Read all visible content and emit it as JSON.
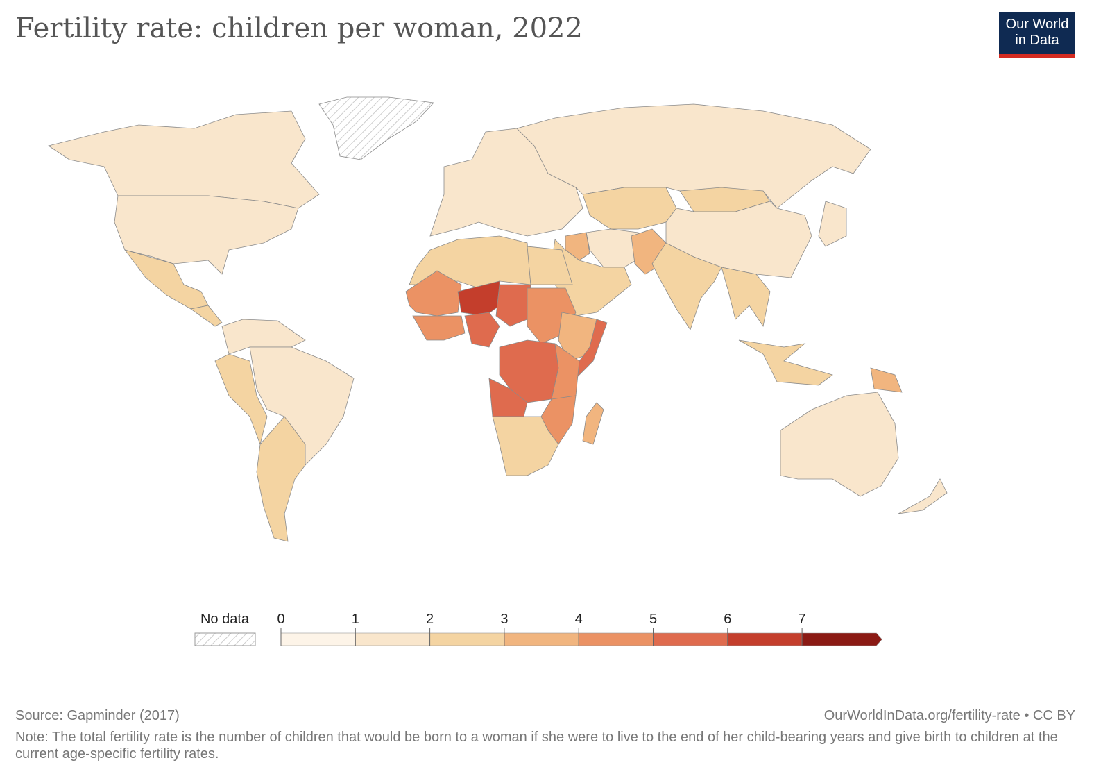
{
  "title": "Fertility rate: children per woman, 2022",
  "logo": {
    "line1": "Our World",
    "line2": "in Data"
  },
  "legend": {
    "no_data_label": "No data",
    "ticks": [
      "0",
      "1",
      "2",
      "3",
      "4",
      "5",
      "6",
      "7"
    ],
    "bins": [
      {
        "min": 0,
        "max": 1,
        "color": "#fdf4e8"
      },
      {
        "min": 1,
        "max": 2,
        "color": "#f9e6cc"
      },
      {
        "min": 2,
        "max": 3,
        "color": "#f4d4a2"
      },
      {
        "min": 3,
        "max": 4,
        "color": "#f1b57f"
      },
      {
        "min": 4,
        "max": 5,
        "color": "#eb9264"
      },
      {
        "min": 5,
        "max": 6,
        "color": "#df6b4e"
      },
      {
        "min": 6,
        "max": 7,
        "color": "#c43e2c"
      },
      {
        "min": 7,
        "max": 99,
        "color": "#8b1a14"
      }
    ]
  },
  "regions": {
    "canada": 1.5,
    "usa": 1.7,
    "mexico": 2.1,
    "central-america": 2.3,
    "greenland": null,
    "south-america-north": 1.9,
    "brazil": 1.7,
    "andes": 2.1,
    "argentina": 2.2,
    "europe": 1.5,
    "russia": 1.5,
    "central-asia": 2.6,
    "mongolia": 2.8,
    "china": 1.6,
    "middle-east": 2.6,
    "iraq": 3.5,
    "iran": 1.7,
    "pakistan": 3.4,
    "india": 2.1,
    "southeast-asia": 2.1,
    "indonesia": 2.2,
    "png": 3.2,
    "japan": 1.3,
    "australia": 1.6,
    "new-zealand": 1.7,
    "north-africa": 2.8,
    "egypt": 2.9,
    "sahel-west": 4.5,
    "mali-chad": 5.5,
    "niger": 6.8,
    "west-coast": 4.6,
    "nigeria": 5.1,
    "sudan": 4.2,
    "ethiopia": 3.8,
    "somalia": 5.9,
    "drc": 5.5,
    "angola": 5.2,
    "east-africa": 4.3,
    "southern-africa": 2.5,
    "mozambique": 4.5,
    "madagascar": 3.8
  },
  "footer": {
    "source": "Source: Gapminder (2017)",
    "url": "OurWorldInData.org/fertility-rate • CC BY",
    "note": "Note: The total fertility rate is the number of children that would be born to a woman if she were to live to the end of her child-bearing years and give birth to children at the current age-specific fertility rates."
  }
}
